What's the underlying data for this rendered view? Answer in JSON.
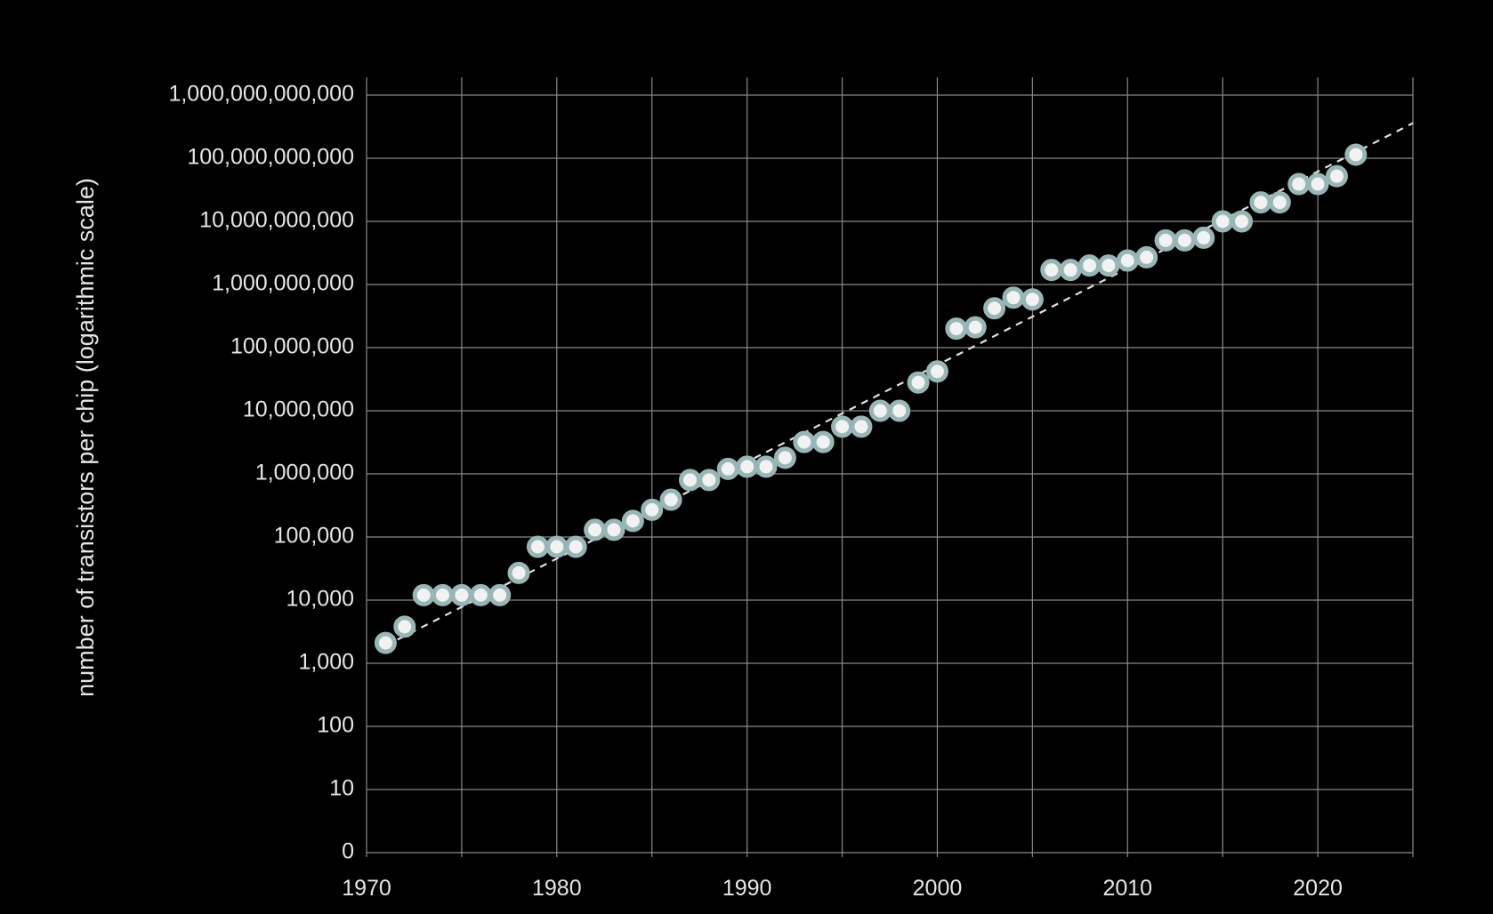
{
  "chart_data": {
    "type": "scatter",
    "title": "",
    "xlabel": "",
    "ylabel": "number of transistors per chip (logarithmic scale)",
    "y_scale": "log",
    "grid": true,
    "xlim": [
      1970,
      2025
    ],
    "ylim": [
      1,
      1000000000000
    ],
    "x_ticks": [
      1970,
      1975,
      1980,
      1985,
      1990,
      1995,
      2000,
      2005,
      2010,
      2015,
      2020,
      2025
    ],
    "x_tick_labels": [
      "1970",
      "",
      "1980",
      "",
      "1990",
      "",
      "2000",
      "",
      "2010",
      "",
      "2020",
      ""
    ],
    "y_ticks": [
      1,
      10,
      100,
      1000,
      10000,
      100000,
      1000000,
      10000000,
      100000000,
      1000000000,
      10000000000,
      100000000000,
      1000000000000
    ],
    "y_tick_labels": [
      "0",
      "10",
      "100",
      "1,000",
      "10,000",
      "100,000",
      "1,000,000",
      "10,000,000",
      "100,000,000",
      "1,000,000,000",
      "10,000,000,000",
      "100,000,000,000",
      "1,000,000,000,000"
    ],
    "series": [
      {
        "x": [
          1971,
          1972,
          1973,
          1974,
          1975,
          1976,
          1977,
          1978,
          1979,
          1980,
          1981,
          1982,
          1983,
          1984,
          1985,
          1986,
          1987,
          1988,
          1989,
          1990,
          1991,
          1992,
          1993,
          1994,
          1995,
          1996,
          1997,
          1998,
          1999,
          2000,
          2001,
          2002,
          2003,
          2004,
          2005,
          2006,
          2007,
          2008,
          2009,
          2010,
          2011,
          2012,
          2013,
          2014,
          2015,
          2016,
          2017,
          2018,
          2019,
          2020,
          2021,
          2022
        ],
        "y": [
          2100,
          3800,
          12000,
          12000,
          12000,
          12000,
          12000,
          27000,
          70000,
          70000,
          70000,
          130000,
          130000,
          180000,
          270000,
          390000,
          800000,
          800000,
          1200000,
          1300000,
          1300000,
          1800000,
          3200000,
          3200000,
          5600000,
          5600000,
          10000000,
          10000000,
          28000000,
          42000000,
          200000000,
          210000000,
          420000000,
          620000000,
          580000000,
          1700000000,
          1700000000,
          2000000000,
          2000000000,
          2400000000,
          2700000000,
          5000000000,
          5000000000,
          5500000000,
          10000000000,
          10000000000,
          20000000000,
          20000000000,
          39000000000,
          39000000000,
          52000000000,
          114000000000
        ]
      }
    ],
    "trend_line": {
      "style": "dashed",
      "x": [
        1971,
        2025
      ],
      "y": [
        1900,
        360000000000
      ]
    },
    "colors": {
      "background": "#000000",
      "grid": "#8a8a8a",
      "text": "#e6e6e6",
      "point_fill": "#f2f2f2",
      "point_stroke": "#97b7b6",
      "trend": "#e0e0e0"
    }
  }
}
